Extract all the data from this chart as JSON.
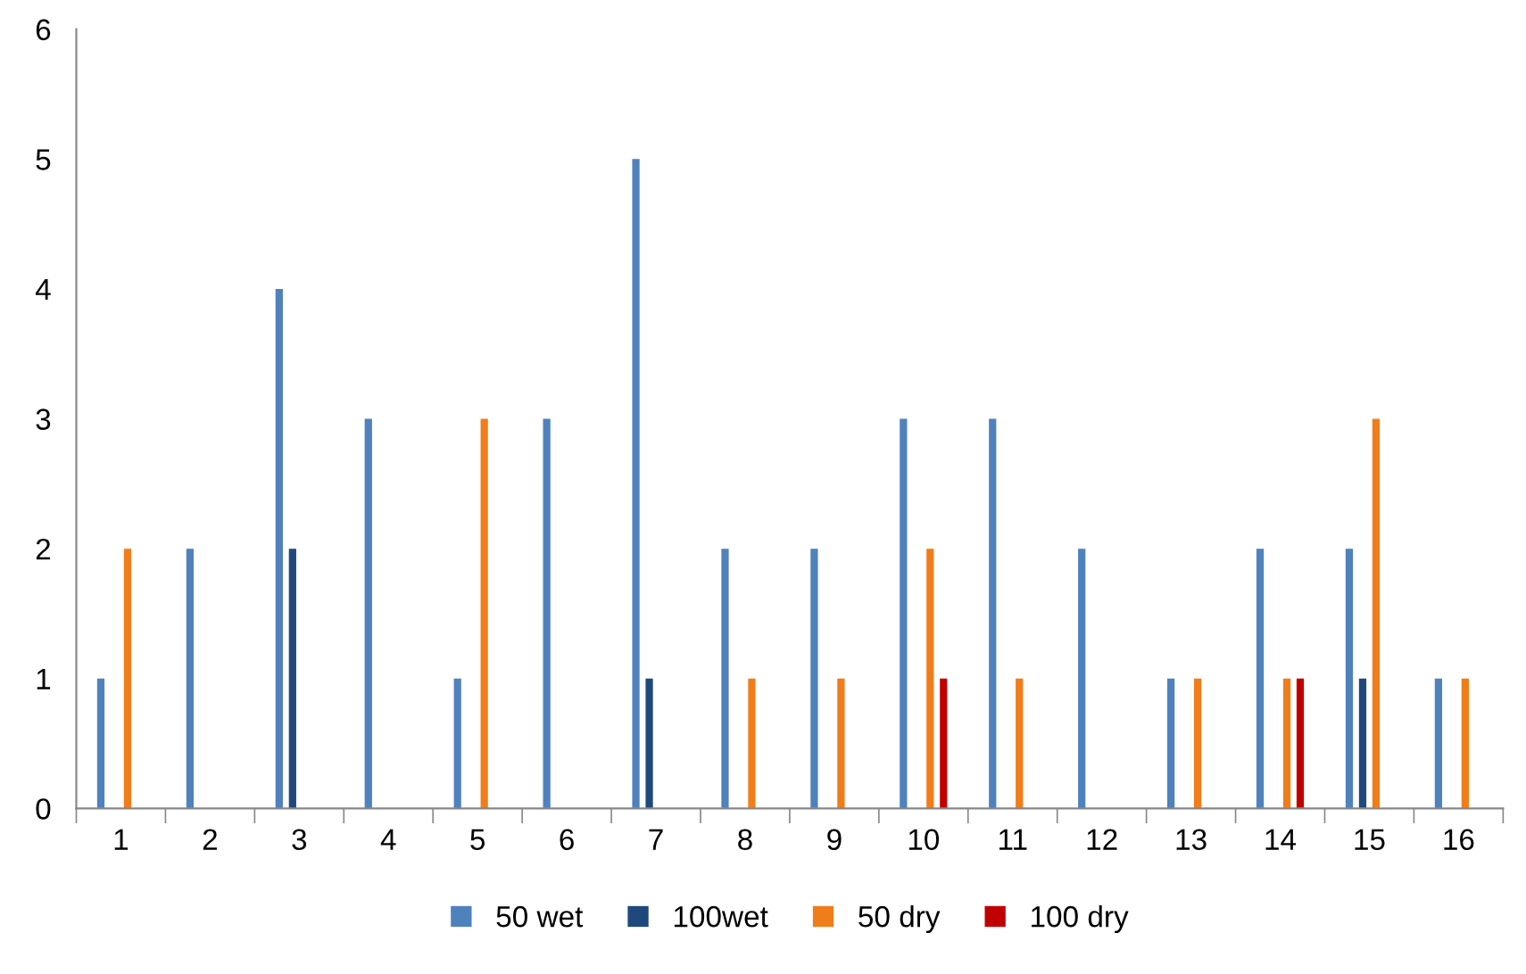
{
  "chart_data": {
    "type": "bar",
    "categories": [
      "1",
      "2",
      "3",
      "4",
      "5",
      "6",
      "7",
      "8",
      "9",
      "10",
      "11",
      "12",
      "13",
      "14",
      "15",
      "16"
    ],
    "series": [
      {
        "name": "50 wet",
        "color": "#4f81bd",
        "values": [
          1,
          2,
          4,
          3,
          1,
          3,
          5,
          2,
          2,
          3,
          3,
          2,
          1,
          2,
          2,
          1
        ]
      },
      {
        "name": "100wet",
        "color": "#1f497d",
        "values": [
          0,
          0,
          2,
          0,
          0,
          0,
          1,
          0,
          0,
          0,
          0,
          0,
          0,
          0,
          1,
          0
        ]
      },
      {
        "name": "50 dry",
        "color": "#f07d1a",
        "values": [
          2,
          0,
          0,
          0,
          3,
          0,
          0,
          1,
          1,
          2,
          1,
          0,
          1,
          1,
          3,
          1
        ]
      },
      {
        "name": "100 dry",
        "color": "#c00000",
        "values": [
          0,
          0,
          0,
          0,
          0,
          0,
          0,
          0,
          0,
          1,
          0,
          0,
          0,
          1,
          0,
          0
        ]
      }
    ],
    "ylim": [
      0,
      6
    ],
    "yticks": [
      0,
      1,
      2,
      3,
      4,
      5,
      6
    ],
    "grid": false,
    "legend": "bottom"
  }
}
